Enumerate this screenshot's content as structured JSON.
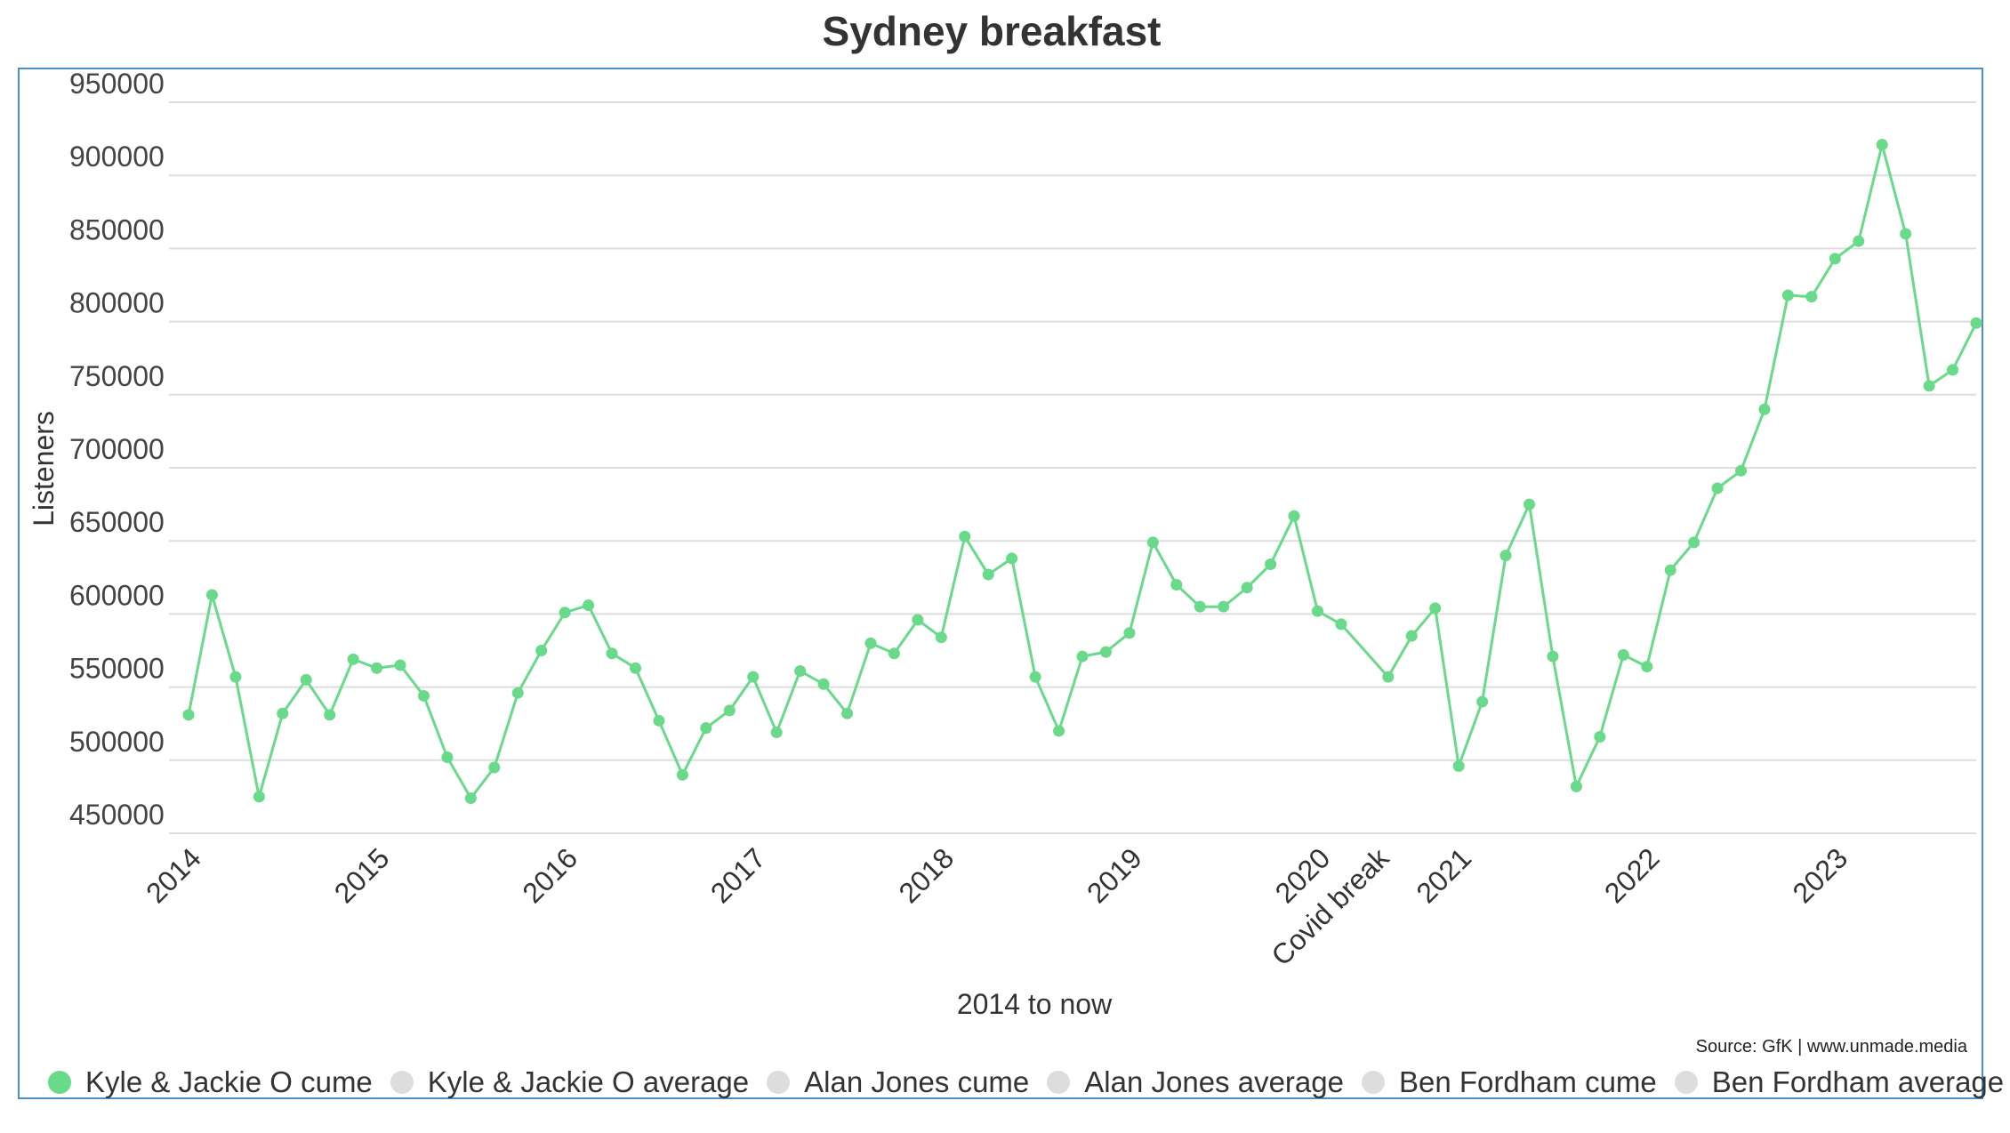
{
  "title": "Sydney breakfast",
  "source": "Source: GfK | www.unmade.media",
  "colors": {
    "series": "#69d98a",
    "inactive": "#dddddd",
    "grid": "#dddddd"
  },
  "chart_data": {
    "type": "line",
    "title": "Sydney breakfast",
    "xlabel": "2014 to now",
    "ylabel": "Listeners",
    "ylim": [
      450000,
      950000
    ],
    "yticks": [
      450000,
      500000,
      550000,
      600000,
      650000,
      700000,
      750000,
      800000,
      850000,
      900000,
      950000
    ],
    "grid": true,
    "legend_position": "bottom",
    "x_tick_labels": [
      "2014",
      "2015",
      "2016",
      "2017",
      "2018",
      "2019",
      "2020",
      "Covid break",
      "2021",
      "2022",
      "2023"
    ],
    "x_tick_positions": [
      0,
      8,
      16,
      24,
      32,
      40,
      48,
      50.5,
      54,
      62,
      70
    ],
    "legend": [
      {
        "name": "Kyle & Jackie O cume",
        "active": true
      },
      {
        "name": "Kyle & Jackie O average",
        "active": false
      },
      {
        "name": "Alan Jones cume",
        "active": false
      },
      {
        "name": "Alan Jones average",
        "active": false
      },
      {
        "name": "Ben Fordham cume",
        "active": false
      },
      {
        "name": "Ben Fordham average",
        "active": false
      }
    ],
    "series": [
      {
        "name": "Kyle & Jackie O cume",
        "x": [
          0,
          1,
          2,
          3,
          4,
          5,
          6,
          7,
          8,
          9,
          10,
          11,
          12,
          13,
          14,
          15,
          16,
          17,
          18,
          19,
          20,
          21,
          22,
          23,
          24,
          25,
          26,
          27,
          28,
          29,
          30,
          31,
          32,
          33,
          34,
          35,
          36,
          37,
          38,
          39,
          40,
          41,
          42,
          43,
          44,
          45,
          46,
          47,
          48,
          49,
          51,
          52,
          53,
          54,
          55,
          56,
          57,
          58,
          59,
          60,
          61,
          62,
          63,
          64,
          65,
          66,
          67,
          68,
          69,
          70,
          71,
          72,
          73,
          74,
          75,
          76
        ],
        "values": [
          531000,
          613000,
          557000,
          475000,
          532000,
          555000,
          531000,
          569000,
          563000,
          565000,
          544000,
          502000,
          474000,
          495000,
          546000,
          575000,
          601000,
          606000,
          573000,
          563000,
          527000,
          490000,
          522000,
          534000,
          557000,
          519000,
          561000,
          552000,
          532000,
          580000,
          573000,
          596000,
          584000,
          653000,
          627000,
          638000,
          557000,
          520000,
          571000,
          574000,
          587000,
          649000,
          620000,
          605000,
          605000,
          618000,
          634000,
          667000,
          602000,
          593000,
          557000,
          585000,
          604000,
          496000,
          540000,
          640000,
          675000,
          571000,
          482000,
          516000,
          572000,
          564000,
          630000,
          649000,
          686000,
          698000,
          740000,
          818000,
          817000,
          843000,
          855000,
          921000,
          860000,
          756000,
          767000,
          799000
        ]
      }
    ]
  }
}
